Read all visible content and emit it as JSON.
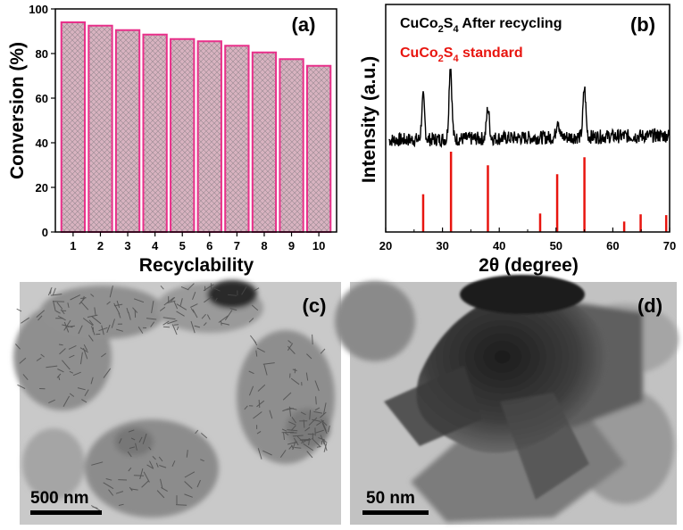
{
  "chart_data": [
    {
      "type": "bar",
      "panel": "(a)",
      "categories": [
        "1",
        "2",
        "3",
        "4",
        "5",
        "6",
        "7",
        "8",
        "9",
        "10"
      ],
      "values": [
        94,
        92.5,
        90.5,
        88.5,
        86.5,
        85.5,
        83.5,
        80.5,
        77.5,
        74.5
      ],
      "xlabel": "Recyclability",
      "ylabel": "Conversion (%)",
      "ylim": [
        0,
        100
      ],
      "yticks": [
        "0",
        "20",
        "40",
        "60",
        "80",
        "100"
      ],
      "bar_fill": "#d4a5b4",
      "bar_edge": "#e8308a",
      "grid": false
    },
    {
      "type": "line",
      "panel": "(b)",
      "xlabel": "2θ (degree)",
      "ylabel": "Intensity (a.u.)",
      "xlim": [
        20,
        70
      ],
      "xticks": [
        "20",
        "30",
        "40",
        "50",
        "60",
        "70"
      ],
      "series": [
        {
          "name": "CuCo2S4 After recycling",
          "color": "#000000",
          "peaks": [
            {
              "x": 26.6,
              "height": 18
            },
            {
              "x": 31.4,
              "height": 32
            },
            {
              "x": 38.0,
              "height": 13
            },
            {
              "x": 50.3,
              "height": 8
            },
            {
              "x": 55.0,
              "height": 21
            }
          ]
        },
        {
          "name": "CuCo2S4 standard",
          "color": "#e8150f",
          "sticks": [
            {
              "x": 26.6,
              "y": 0.47
            },
            {
              "x": 31.5,
              "y": 1.0
            },
            {
              "x": 38.0,
              "y": 0.83
            },
            {
              "x": 47.2,
              "y": 0.23
            },
            {
              "x": 50.2,
              "y": 0.72
            },
            {
              "x": 55.0,
              "y": 0.93
            },
            {
              "x": 62.0,
              "y": 0.13
            },
            {
              "x": 64.9,
              "y": 0.22
            },
            {
              "x": 69.4,
              "y": 0.21
            }
          ]
        }
      ],
      "legend": [
        {
          "text": "CuCo",
          "sub1": "2",
          "mid": "S",
          "sub2": "4",
          "tail": " After recycling",
          "color": "#000000"
        },
        {
          "text": "CuCo",
          "sub1": "2",
          "mid": "S",
          "sub2": "4",
          "tail": " standard",
          "color": "#e8150f"
        }
      ]
    }
  ],
  "panels": {
    "c": {
      "label": "(c)",
      "scale_bar": "500 nm"
    },
    "d": {
      "label": "(d)",
      "scale_bar": "50 nm"
    }
  }
}
